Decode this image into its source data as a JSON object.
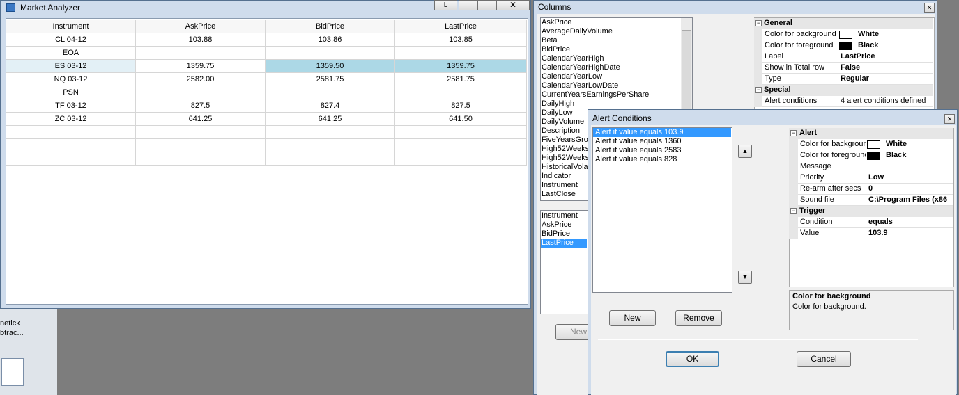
{
  "desktop": {
    "icons": [
      "netick",
      "btrac..."
    ]
  },
  "market_analyzer": {
    "title": "Market Analyzer",
    "button": "L",
    "table": {
      "headers": [
        "Instrument",
        "AskPrice",
        "BidPrice",
        "LastPrice"
      ],
      "rows": [
        [
          "CL 04-12",
          "103.88",
          "103.86",
          "103.85"
        ],
        [
          "EOA"
        ],
        [
          "ES 03-12",
          "1359.75",
          "1359.50",
          "1359.75"
        ],
        [
          "NQ 03-12",
          "2582.00",
          "2581.75",
          "2581.75"
        ],
        [
          "PSN"
        ],
        [
          "TF 03-12",
          "827.5",
          "827.4",
          "827.5"
        ],
        [
          "ZC 03-12",
          "641.25",
          "641.25",
          "641.50"
        ]
      ]
    }
  },
  "columns": {
    "title": "Columns",
    "available": [
      "AskPrice",
      "AverageDailyVolume",
      "Beta",
      "BidPrice",
      "CalendarYearHigh",
      "CalendarYearHighDate",
      "CalendarYearLow",
      "CalendarYearLowDate",
      "CurrentYearsEarningsPerShare",
      "DailyHigh",
      "DailyLow",
      "DailyVolume",
      "Description",
      "FiveYearsGrow",
      "High52Weeks",
      "High52Weeks",
      "HistoricalVolat",
      "Indicator",
      "Instrument",
      "LastClose"
    ],
    "selected": [
      "Instrument",
      "AskPrice",
      "BidPrice",
      "LastPrice"
    ],
    "new_button": "New",
    "properties": {
      "sections": [
        {
          "name": "General",
          "rows": [
            [
              "Color for background",
              "White"
            ],
            [
              "Color for foreground",
              "Black"
            ],
            [
              "Label",
              "LastPrice"
            ],
            [
              "Show in Total row",
              "False"
            ],
            [
              "Type",
              "Regular"
            ]
          ]
        },
        {
          "name": "Special",
          "rows": [
            [
              "Alert conditions",
              "4 alert conditions defined"
            ]
          ]
        }
      ]
    }
  },
  "alert_conditions": {
    "title": "Alert Conditions",
    "conditions": [
      "Alert if value equals 103.9",
      "Alert if value equals 1360",
      "Alert if value equals 2583",
      "Alert if value equals 828"
    ],
    "properties": {
      "sections": [
        {
          "name": "Alert",
          "rows": [
            [
              "Color for background",
              "White"
            ],
            [
              "Color for foreground",
              "Black"
            ],
            [
              "Message"
            ],
            [
              "Priority",
              "Low"
            ],
            [
              "Re-arm after secs",
              "0"
            ],
            [
              "Sound file",
              "C:\\Program Files (x86"
            ]
          ]
        },
        {
          "name": "Trigger",
          "rows": [
            [
              "Condition",
              "equals"
            ],
            [
              "Value",
              "103.9"
            ]
          ]
        }
      ]
    },
    "description": {
      "title": "Color for background",
      "text": "Color for background."
    },
    "buttons": {
      "new": "New",
      "remove": "Remove",
      "ok": "OK",
      "cancel": "Cancel"
    }
  }
}
